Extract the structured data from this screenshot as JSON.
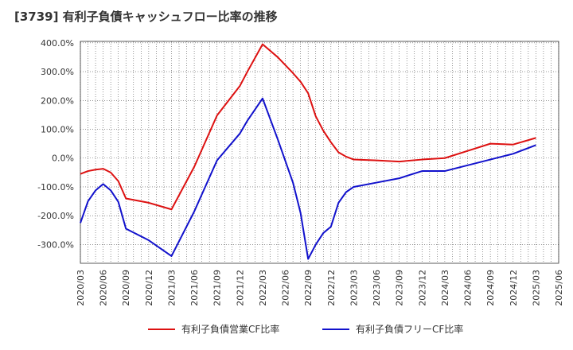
{
  "chart_data": {
    "type": "line",
    "title": "[3739]  有利子負債キャッシュフロー比率の推移",
    "xlabel": "",
    "ylabel": "",
    "x_ticks": [
      "2020/03",
      "2020/06",
      "2020/09",
      "2020/12",
      "2021/03",
      "2021/06",
      "2021/09",
      "2021/12",
      "2022/03",
      "2022/06",
      "2022/09",
      "2022/12",
      "2023/03",
      "2023/06",
      "2023/09",
      "2023/12",
      "2024/03",
      "2024/06",
      "2024/09",
      "2024/12",
      "2025/03",
      "2025/06"
    ],
    "y_ticks": [
      "400.0%",
      "300.0%",
      "200.0%",
      "100.0%",
      "0.0%",
      "-100.0%",
      "-200.0%",
      "-300.0%"
    ],
    "y_tick_values": [
      400,
      300,
      200,
      100,
      0,
      -100,
      -200,
      -300
    ],
    "ylim": [
      -365,
      405
    ],
    "xlim": [
      "2020/03",
      "2025/06"
    ],
    "grid": true,
    "legend_position": "bottom",
    "series": [
      {
        "name": "有利子負債営業CF比率",
        "color": "#dd1111",
        "points": [
          [
            "2020/03",
            -55
          ],
          [
            "2020/04",
            -45
          ],
          [
            "2020/05",
            -40
          ],
          [
            "2020/06",
            -37
          ],
          [
            "2020/07",
            -50
          ],
          [
            "2020/08",
            -80
          ],
          [
            "2020/09",
            -140
          ],
          [
            "2020/12",
            -155
          ],
          [
            "2021/03",
            -178
          ],
          [
            "2021/06",
            -30
          ],
          [
            "2021/09",
            148
          ],
          [
            "2021/12",
            250
          ],
          [
            "2022/01",
            300
          ],
          [
            "2022/03",
            395
          ],
          [
            "2022/05",
            350
          ],
          [
            "2022/07",
            295
          ],
          [
            "2022/08",
            265
          ],
          [
            "2022/09",
            225
          ],
          [
            "2022/10",
            145
          ],
          [
            "2022/11",
            95
          ],
          [
            "2022/12",
            55
          ],
          [
            "2023/01",
            20
          ],
          [
            "2023/02",
            5
          ],
          [
            "2023/03",
            -5
          ],
          [
            "2023/06",
            -8
          ],
          [
            "2023/09",
            -12
          ],
          [
            "2023/12",
            -5
          ],
          [
            "2024/03",
            0
          ],
          [
            "2024/06",
            25
          ],
          [
            "2024/09",
            50
          ],
          [
            "2024/12",
            47
          ],
          [
            "2025/03",
            70
          ]
        ]
      },
      {
        "name": "有利子負債フリーCF比率",
        "color": "#1111cc",
        "points": [
          [
            "2020/03",
            -225
          ],
          [
            "2020/04",
            -150
          ],
          [
            "2020/05",
            -112
          ],
          [
            "2020/06",
            -90
          ],
          [
            "2020/07",
            -112
          ],
          [
            "2020/08",
            -152
          ],
          [
            "2020/09",
            -245
          ],
          [
            "2020/12",
            -285
          ],
          [
            "2021/03",
            -340
          ],
          [
            "2021/06",
            -185
          ],
          [
            "2021/09",
            -8
          ],
          [
            "2021/12",
            85
          ],
          [
            "2022/01",
            130
          ],
          [
            "2022/03",
            207
          ],
          [
            "2022/05",
            65
          ],
          [
            "2022/07",
            -85
          ],
          [
            "2022/08",
            -190
          ],
          [
            "2022/09",
            -350
          ],
          [
            "2022/10",
            -300
          ],
          [
            "2022/11",
            -260
          ],
          [
            "2022/12",
            -238
          ],
          [
            "2023/01",
            -155
          ],
          [
            "2023/02",
            -118
          ],
          [
            "2023/03",
            -100
          ],
          [
            "2023/06",
            -85
          ],
          [
            "2023/09",
            -70
          ],
          [
            "2023/12",
            -45
          ],
          [
            "2024/03",
            -45
          ],
          [
            "2024/06",
            -25
          ],
          [
            "2024/09",
            -5
          ],
          [
            "2024/12",
            15
          ],
          [
            "2025/02",
            35
          ],
          [
            "2025/03",
            45
          ]
        ]
      }
    ]
  }
}
